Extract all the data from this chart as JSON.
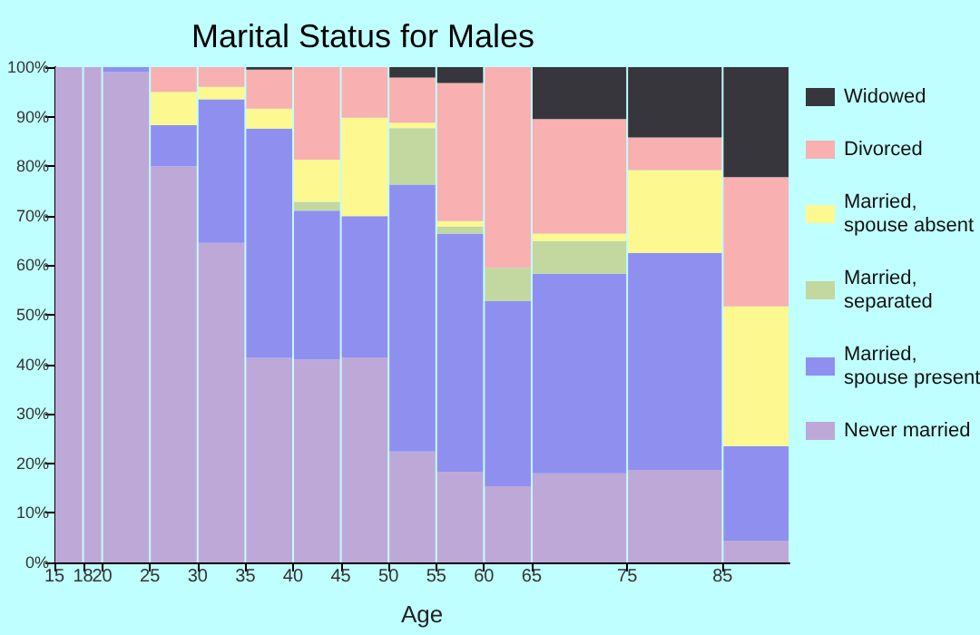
{
  "chart_data": {
    "type": "bar",
    "stacked": true,
    "title": "Marital Status for Males",
    "xlabel": "Age",
    "x": [
      16.5,
      19,
      22.5,
      27.5,
      32.5,
      37.5,
      42.5,
      47.5,
      52.5,
      57.5,
      62.5,
      70,
      80,
      88.5
    ],
    "xlim": [
      15,
      92
    ],
    "xticks": [
      15,
      18,
      20,
      25,
      30,
      35,
      40,
      45,
      50,
      55,
      60,
      65,
      75,
      85
    ],
    "ylim": [
      0,
      100
    ],
    "yticks": [
      {
        "value": 0,
        "label": "0%"
      },
      {
        "value": 10,
        "label": "10%"
      },
      {
        "value": 20,
        "label": "20%"
      },
      {
        "value": 30,
        "label": "30%"
      },
      {
        "value": 40,
        "label": "40%"
      },
      {
        "value": 50,
        "label": "50%"
      },
      {
        "value": 60,
        "label": "60%"
      },
      {
        "value": 70,
        "label": "70%"
      },
      {
        "value": 80,
        "label": "80%"
      },
      {
        "value": 90,
        "label": "90%"
      },
      {
        "value": 100,
        "label": "100%"
      }
    ],
    "grid": false,
    "legend": "right",
    "series": [
      {
        "name": "Never married",
        "color": "#bea8d8",
        "values": [
          100,
          100,
          99,
          80,
          64.5,
          41.3,
          41,
          41.4,
          22.4,
          18.3,
          15.4,
          18,
          18.7,
          4.4
        ]
      },
      {
        "name": "Married, spouse present",
        "color": "#8f8ff0",
        "values": [
          0,
          0,
          1,
          8.3,
          29,
          46.3,
          30,
          28.5,
          53.9,
          48.1,
          37.4,
          40.3,
          43.8,
          19.1
        ]
      },
      {
        "name": "Married, separated",
        "color": "#c2d8a0",
        "values": [
          0,
          0,
          0,
          0,
          0,
          0,
          1.8,
          0,
          11.4,
          1.4,
          6.7,
          6.6,
          0,
          0
        ]
      },
      {
        "name": "Married, spouse absent",
        "color": "#fef890",
        "values": [
          0,
          0,
          0,
          6.7,
          2.5,
          4,
          8.5,
          19.9,
          1.1,
          1.1,
          0,
          1.5,
          16.7,
          28.2
        ]
      },
      {
        "name": "Divorced",
        "color": "#f8b0b0",
        "values": [
          0,
          0,
          0,
          5,
          4,
          7.9,
          18.7,
          10.2,
          9.1,
          27.9,
          40.5,
          23.1,
          6.6,
          26.1
        ]
      },
      {
        "name": "Widowed",
        "color": "#36363c",
        "values": [
          0,
          0,
          0,
          0,
          0,
          0.5,
          0,
          0,
          2.1,
          3.2,
          0,
          10.5,
          14.2,
          22.2
        ]
      }
    ]
  }
}
